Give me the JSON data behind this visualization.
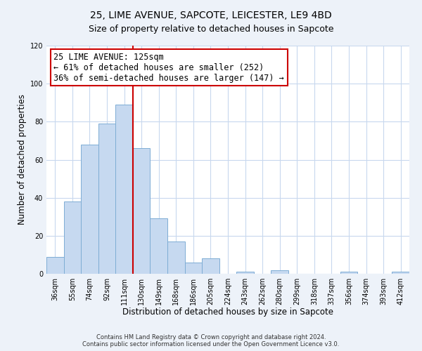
{
  "title": "25, LIME AVENUE, SAPCOTE, LEICESTER, LE9 4BD",
  "subtitle": "Size of property relative to detached houses in Sapcote",
  "xlabel": "Distribution of detached houses by size in Sapcote",
  "ylabel": "Number of detached properties",
  "bar_labels": [
    "36sqm",
    "55sqm",
    "74sqm",
    "92sqm",
    "111sqm",
    "130sqm",
    "149sqm",
    "168sqm",
    "186sqm",
    "205sqm",
    "224sqm",
    "243sqm",
    "262sqm",
    "280sqm",
    "299sqm",
    "318sqm",
    "337sqm",
    "356sqm",
    "374sqm",
    "393sqm",
    "412sqm"
  ],
  "bar_values": [
    9,
    38,
    68,
    79,
    89,
    66,
    29,
    17,
    6,
    8,
    0,
    1,
    0,
    2,
    0,
    0,
    0,
    1,
    0,
    0,
    1
  ],
  "bar_color": "#c6d9f0",
  "bar_edge_color": "#7eadd4",
  "vline_x_index": 5,
  "vline_color": "#cc0000",
  "annotation_line1": "25 LIME AVENUE: 125sqm",
  "annotation_line2": "← 61% of detached houses are smaller (252)",
  "annotation_line3": "36% of semi-detached houses are larger (147) →",
  "annotation_box_edge": "#cc0000",
  "ylim": [
    0,
    120
  ],
  "yticks": [
    0,
    20,
    40,
    60,
    80,
    100,
    120
  ],
  "footer1": "Contains HM Land Registry data © Crown copyright and database right 2024.",
  "footer2": "Contains public sector information licensed under the Open Government Licence v3.0.",
  "bg_color": "#edf2f9",
  "plot_bg_color": "#ffffff",
  "grid_color": "#c8d8ee",
  "title_fontsize": 10,
  "subtitle_fontsize": 9,
  "axis_label_fontsize": 8.5,
  "tick_fontsize": 7,
  "annotation_fontsize": 8.5,
  "footer_fontsize": 6
}
